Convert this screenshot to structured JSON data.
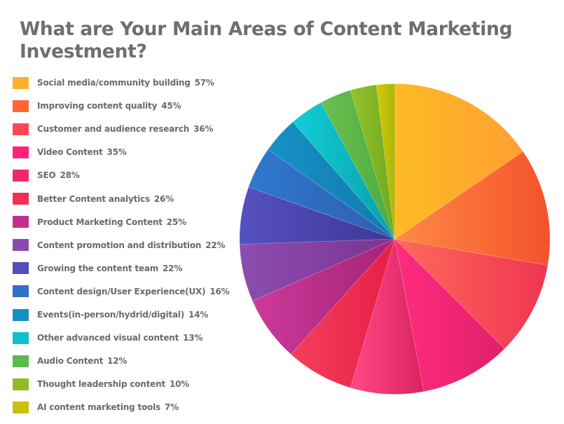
{
  "chart_data": {
    "type": "pie",
    "title": "What are Your Main Areas of Content Marketing Investment?",
    "legend_position": "left",
    "unit": "%",
    "start_angle_deg": 0,
    "direction": "clockwise",
    "categories": [
      "Social media/community building",
      "Improving content quality",
      "Customer and audience research",
      "Video Content",
      "SEO",
      "Better Content analytics",
      "Product Marketing Content",
      "Content promotion and distribution",
      "Growing the content team",
      "Content design/User Experience(UX)",
      "Events(in-person/hydrid/digital)",
      "Other advanced visual content",
      "Audio Content",
      "Thought leadership content",
      "AI content marketing tools"
    ],
    "values": [
      57,
      45,
      36,
      35,
      28,
      26,
      25,
      22,
      22,
      16,
      14,
      13,
      12,
      10,
      7
    ],
    "labels": [
      "57%",
      "45%",
      "36%",
      "35%",
      "28%",
      "26%",
      "25%",
      "22%",
      "22%",
      "16%",
      "14%",
      "13%",
      "12%",
      "10%",
      "7%"
    ],
    "colors": [
      [
        "#FDBB23",
        "#FF9F33"
      ],
      [
        "#FF8A45",
        "#F4522B"
      ],
      [
        "#FF6A5C",
        "#F03550"
      ],
      [
        "#FF2C7D",
        "#E01F6A"
      ],
      [
        "#FF4A86",
        "#DA2260"
      ],
      [
        "#F5405A",
        "#E61D47"
      ],
      [
        "#CC3A9A",
        "#A52277"
      ],
      [
        "#8C4DB0",
        "#7A3492"
      ],
      [
        "#5551C0",
        "#3F3595"
      ],
      [
        "#2E79CE",
        "#2F5DB1"
      ],
      [
        "#1591C6",
        "#137AAD"
      ],
      [
        "#12D0D6",
        "#0A9EAA"
      ],
      [
        "#6CC04E",
        "#4CAA3F"
      ],
      [
        "#96C22A",
        "#6EA91F"
      ],
      [
        "#D4CA08",
        "#A9B80A"
      ]
    ],
    "legend_colors": [
      "#FFAE2B",
      "#FF6633",
      "#FF4757",
      "#FF2277",
      "#EE2A6E",
      "#F22F52",
      "#C02E8E",
      "#8A4AAB",
      "#5050B8",
      "#2F72C6",
      "#178FC3",
      "#10BFCB",
      "#5DB84D",
      "#8DBD25",
      "#C8C20A"
    ]
  },
  "title": {
    "line1": "What are Your Main Areas of Content Marketing",
    "line2": "Investment?"
  },
  "legend": [
    {
      "label": "Social media/community building",
      "value": "57%"
    },
    {
      "label": "Improving content quality",
      "value": "45%"
    },
    {
      "label": "Customer and audience research",
      "value": "36%"
    },
    {
      "label": "Video Content",
      "value": "35%"
    },
    {
      "label": "SEO",
      "value": "28%"
    },
    {
      "label": "Better Content analytics",
      "value": "26%"
    },
    {
      "label": "Product Marketing Content",
      "value": "25%"
    },
    {
      "label": "Content promotion and distribution",
      "value": "22%"
    },
    {
      "label": "Growing the content team",
      "value": "22%"
    },
    {
      "label": "Content design/User Experience(UX)",
      "value": "16%"
    },
    {
      "label": "Events(in-person/hydrid/digital)",
      "value": "14%"
    },
    {
      "label": "Other advanced visual content",
      "value": "13%"
    },
    {
      "label": "Audio Content",
      "value": "12%"
    },
    {
      "label": "Thought leadership content",
      "value": "10%"
    },
    {
      "label": "AI content marketing tools",
      "value": "7%"
    }
  ]
}
